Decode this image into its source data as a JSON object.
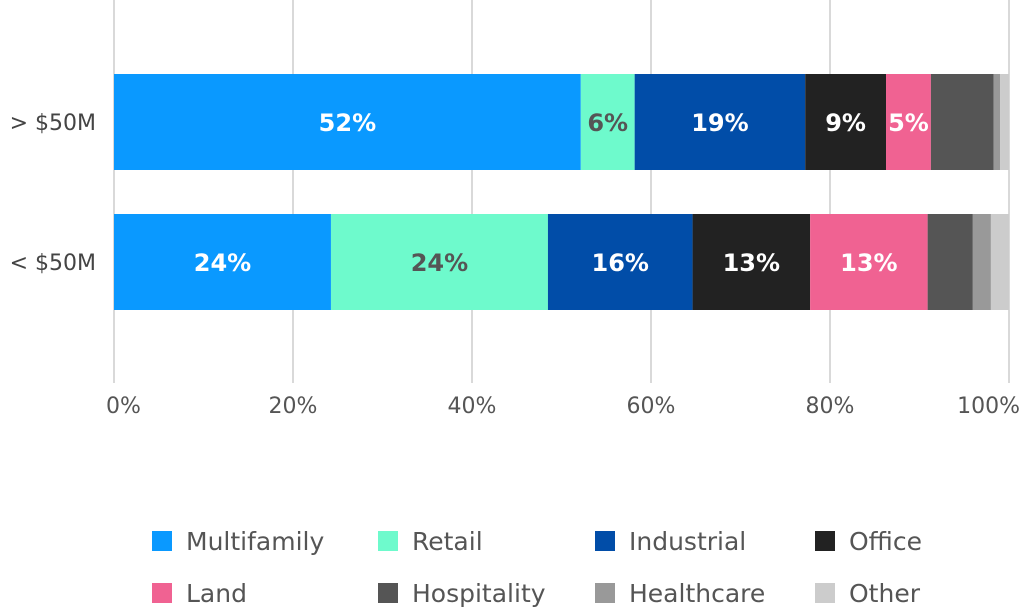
{
  "chart_data": {
    "type": "bar",
    "orientation": "horizontal",
    "stacked": true,
    "categories": [
      "> $50M",
      "< $50M"
    ],
    "series": [
      {
        "name": "Multifamily",
        "color": "#0A99FF",
        "label_color": "#ffffff",
        "values": [
          52,
          24
        ],
        "labels": [
          "52%",
          "24%"
        ]
      },
      {
        "name": "Retail",
        "color": "#6EFACC",
        "label_color": "#555555",
        "values": [
          6,
          24
        ],
        "labels": [
          "6%",
          "24%"
        ]
      },
      {
        "name": "Industrial",
        "color": "#014DA8",
        "label_color": "#ffffff",
        "values": [
          19,
          16
        ],
        "labels": [
          "19%",
          "16%"
        ]
      },
      {
        "name": "Office",
        "color": "#222222",
        "label_color": "#ffffff",
        "values": [
          9,
          13
        ],
        "labels": [
          "9%",
          "13%"
        ]
      },
      {
        "name": "Land",
        "color": "#F06292",
        "label_color": "#ffffff",
        "values": [
          5,
          13
        ],
        "labels": [
          "5%",
          "13%"
        ]
      },
      {
        "name": "Hospitality",
        "color": "#555555",
        "label_color": "#ffffff",
        "values": [
          7,
          5
        ],
        "labels": [
          "",
          ""
        ]
      },
      {
        "name": "Healthcare",
        "color": "#999999",
        "label_color": "#ffffff",
        "values": [
          0.7,
          2
        ],
        "labels": [
          "",
          ""
        ]
      },
      {
        "name": "Other",
        "color": "#CCCCCC",
        "label_color": "#ffffff",
        "values": [
          1,
          2
        ],
        "labels": [
          "",
          ""
        ]
      }
    ],
    "xlim": [
      0,
      100
    ],
    "x_ticks": [
      "0%",
      "20%",
      "40%",
      "60%",
      "80%",
      "100%"
    ],
    "grid": true,
    "legend": "bottom"
  }
}
